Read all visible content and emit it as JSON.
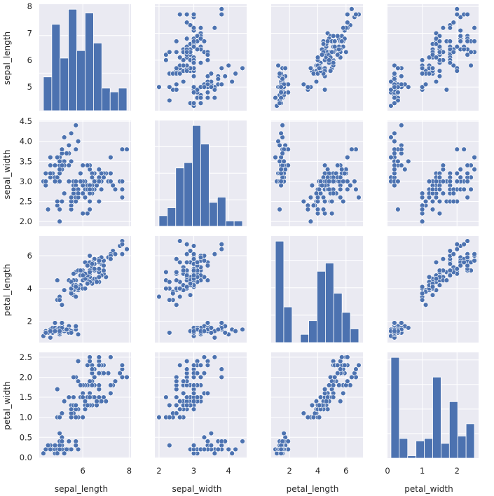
{
  "chart_data": {
    "type": "scatter",
    "variables": [
      "sepal_length",
      "sepal_width",
      "petal_length",
      "petal_width"
    ],
    "axes": {
      "sepal_length": {
        "range": [
          4.12,
          8.08
        ],
        "ticks": [
          6,
          8
        ],
        "tick_labels": [
          "6",
          "8"
        ],
        "row_ticks": [
          5,
          6,
          7,
          8
        ],
        "row_tick_labels": [
          "5",
          "6",
          "7",
          "8"
        ]
      },
      "sepal_width": {
        "range": [
          1.88,
          4.52
        ],
        "ticks": [
          2,
          3,
          4
        ],
        "tick_labels": [
          "2",
          "3",
          "4"
        ],
        "row_ticks": [
          2.0,
          2.5,
          3.0,
          3.5,
          4.0,
          4.5
        ],
        "row_tick_labels": [
          "2.0",
          "2.5",
          "3.0",
          "3.5",
          "4.0",
          "4.5"
        ]
      },
      "petal_length": {
        "range": [
          0.7,
          7.2
        ],
        "ticks": [
          2,
          4,
          6
        ],
        "tick_labels": [
          "2",
          "4",
          "6"
        ],
        "row_ticks": [
          2,
          4,
          6
        ],
        "row_tick_labels": [
          "2",
          "4",
          "6"
        ]
      },
      "petal_width": {
        "range": [
          -0.02,
          2.62
        ],
        "ticks": [
          0,
          1,
          2
        ],
        "tick_labels": [
          "0",
          "1",
          "2"
        ],
        "row_ticks": [
          0.0,
          0.5,
          1.0,
          1.5,
          2.0,
          2.5
        ],
        "row_tick_labels": [
          "0.0",
          "0.5",
          "1.0",
          "1.5",
          "2.0",
          "2.5"
        ]
      }
    },
    "histograms": {
      "sepal_length": {
        "edges": [
          4.3,
          4.66,
          5.02,
          5.38,
          5.74,
          6.1,
          6.46,
          6.82,
          7.18,
          7.54,
          7.9
        ],
        "counts": [
          9,
          23,
          14,
          27,
          16,
          26,
          18,
          6,
          5,
          6
        ]
      },
      "sepal_width": {
        "edges": [
          2.0,
          2.24,
          2.48,
          2.72,
          2.96,
          3.2,
          3.44,
          3.68,
          3.92,
          4.16,
          4.4
        ],
        "counts": [
          4,
          7,
          22,
          24,
          38,
          31,
          9,
          11,
          2,
          2
        ]
      },
      "petal_length": {
        "edges": [
          1.0,
          1.59,
          2.18,
          2.77,
          3.36,
          3.95,
          4.54,
          5.13,
          5.72,
          6.31,
          6.9
        ],
        "counts": [
          37,
          13,
          0,
          3,
          8,
          26,
          29,
          18,
          11,
          5
        ]
      },
      "petal_width": {
        "edges": [
          0.1,
          0.34,
          0.58,
          0.82,
          1.06,
          1.3,
          1.54,
          1.78,
          2.02,
          2.26,
          2.5
        ],
        "counts": [
          41,
          8,
          1,
          7,
          8,
          33,
          6,
          23,
          9,
          14
        ]
      }
    },
    "color": "#4c72b0",
    "background": "#eaeaf2",
    "grid": true,
    "records": [
      [
        5.1,
        3.5,
        1.4,
        0.2
      ],
      [
        4.9,
        3.0,
        1.4,
        0.2
      ],
      [
        4.7,
        3.2,
        1.3,
        0.2
      ],
      [
        4.6,
        3.1,
        1.5,
        0.2
      ],
      [
        5.0,
        3.6,
        1.4,
        0.2
      ],
      [
        5.4,
        3.9,
        1.7,
        0.4
      ],
      [
        4.6,
        3.4,
        1.4,
        0.3
      ],
      [
        5.0,
        3.4,
        1.5,
        0.2
      ],
      [
        4.4,
        2.9,
        1.4,
        0.2
      ],
      [
        4.9,
        3.1,
        1.5,
        0.1
      ],
      [
        5.4,
        3.7,
        1.5,
        0.2
      ],
      [
        4.8,
        3.4,
        1.6,
        0.2
      ],
      [
        4.8,
        3.0,
        1.4,
        0.1
      ],
      [
        4.3,
        3.0,
        1.1,
        0.1
      ],
      [
        5.8,
        4.0,
        1.2,
        0.2
      ],
      [
        5.7,
        4.4,
        1.5,
        0.4
      ],
      [
        5.4,
        3.9,
        1.3,
        0.4
      ],
      [
        5.1,
        3.5,
        1.4,
        0.3
      ],
      [
        5.7,
        3.8,
        1.7,
        0.3
      ],
      [
        5.1,
        3.8,
        1.5,
        0.3
      ],
      [
        5.4,
        3.4,
        1.7,
        0.2
      ],
      [
        5.1,
        3.7,
        1.5,
        0.4
      ],
      [
        4.6,
        3.6,
        1.0,
        0.2
      ],
      [
        5.1,
        3.3,
        1.7,
        0.5
      ],
      [
        4.8,
        3.4,
        1.9,
        0.2
      ],
      [
        5.0,
        3.0,
        1.6,
        0.2
      ],
      [
        5.0,
        3.4,
        1.6,
        0.4
      ],
      [
        5.2,
        3.5,
        1.5,
        0.2
      ],
      [
        5.2,
        3.4,
        1.4,
        0.2
      ],
      [
        4.7,
        3.2,
        1.6,
        0.2
      ],
      [
        4.8,
        3.1,
        1.6,
        0.2
      ],
      [
        5.4,
        3.4,
        1.5,
        0.4
      ],
      [
        5.2,
        4.1,
        1.5,
        0.1
      ],
      [
        5.5,
        4.2,
        1.4,
        0.2
      ],
      [
        4.9,
        3.1,
        1.5,
        0.2
      ],
      [
        5.0,
        3.2,
        1.2,
        0.2
      ],
      [
        5.5,
        3.5,
        1.3,
        0.2
      ],
      [
        4.9,
        3.6,
        1.4,
        0.1
      ],
      [
        4.4,
        3.0,
        1.3,
        0.2
      ],
      [
        5.1,
        3.4,
        1.5,
        0.2
      ],
      [
        5.0,
        3.5,
        1.3,
        0.3
      ],
      [
        4.5,
        2.3,
        1.3,
        0.3
      ],
      [
        4.4,
        3.2,
        1.3,
        0.2
      ],
      [
        5.0,
        3.5,
        1.6,
        0.6
      ],
      [
        5.1,
        3.8,
        1.9,
        0.4
      ],
      [
        4.8,
        3.0,
        1.4,
        0.3
      ],
      [
        5.1,
        3.8,
        1.6,
        0.2
      ],
      [
        4.6,
        3.2,
        1.4,
        0.2
      ],
      [
        5.3,
        3.7,
        1.5,
        0.2
      ],
      [
        5.0,
        3.3,
        1.4,
        0.2
      ],
      [
        7.0,
        3.2,
        4.7,
        1.4
      ],
      [
        6.4,
        3.2,
        4.5,
        1.5
      ],
      [
        6.9,
        3.1,
        4.9,
        1.5
      ],
      [
        5.5,
        2.3,
        4.0,
        1.3
      ],
      [
        6.5,
        2.8,
        4.6,
        1.5
      ],
      [
        5.7,
        2.8,
        4.5,
        1.3
      ],
      [
        6.3,
        3.3,
        4.7,
        1.6
      ],
      [
        4.9,
        2.4,
        3.3,
        1.0
      ],
      [
        6.6,
        2.9,
        4.6,
        1.3
      ],
      [
        5.2,
        2.7,
        3.9,
        1.4
      ],
      [
        5.0,
        2.0,
        3.5,
        1.0
      ],
      [
        5.9,
        3.0,
        4.2,
        1.5
      ],
      [
        6.0,
        2.2,
        4.0,
        1.0
      ],
      [
        6.1,
        2.9,
        4.7,
        1.4
      ],
      [
        5.6,
        2.9,
        3.6,
        1.3
      ],
      [
        6.7,
        3.1,
        4.4,
        1.4
      ],
      [
        5.6,
        3.0,
        4.5,
        1.5
      ],
      [
        5.8,
        2.7,
        4.1,
        1.0
      ],
      [
        6.2,
        2.2,
        4.5,
        1.5
      ],
      [
        5.6,
        2.5,
        3.9,
        1.1
      ],
      [
        5.9,
        3.2,
        4.8,
        1.8
      ],
      [
        6.1,
        2.8,
        4.0,
        1.3
      ],
      [
        6.3,
        2.5,
        4.9,
        1.5
      ],
      [
        6.1,
        2.8,
        4.7,
        1.2
      ],
      [
        6.4,
        2.9,
        4.3,
        1.3
      ],
      [
        6.6,
        3.0,
        4.4,
        1.4
      ],
      [
        6.8,
        2.8,
        4.8,
        1.4
      ],
      [
        6.7,
        3.0,
        5.0,
        1.7
      ],
      [
        6.0,
        2.9,
        4.5,
        1.5
      ],
      [
        5.7,
        2.6,
        3.5,
        1.0
      ],
      [
        5.5,
        2.4,
        3.8,
        1.1
      ],
      [
        5.5,
        2.4,
        3.7,
        1.0
      ],
      [
        5.8,
        2.7,
        3.9,
        1.2
      ],
      [
        6.0,
        2.7,
        5.1,
        1.6
      ],
      [
        5.4,
        3.0,
        4.5,
        1.5
      ],
      [
        6.0,
        3.4,
        4.5,
        1.6
      ],
      [
        6.7,
        3.1,
        4.7,
        1.5
      ],
      [
        6.3,
        2.3,
        4.4,
        1.3
      ],
      [
        5.6,
        3.0,
        4.1,
        1.3
      ],
      [
        5.5,
        2.5,
        4.0,
        1.3
      ],
      [
        5.5,
        2.6,
        4.4,
        1.2
      ],
      [
        6.1,
        3.0,
        4.6,
        1.4
      ],
      [
        5.8,
        2.6,
        4.0,
        1.2
      ],
      [
        5.0,
        2.3,
        3.3,
        1.0
      ],
      [
        5.6,
        2.7,
        4.2,
        1.3
      ],
      [
        5.7,
        3.0,
        4.2,
        1.2
      ],
      [
        5.7,
        2.9,
        4.2,
        1.3
      ],
      [
        6.2,
        2.9,
        4.3,
        1.3
      ],
      [
        5.1,
        2.5,
        3.0,
        1.1
      ],
      [
        5.7,
        2.8,
        4.1,
        1.3
      ],
      [
        6.3,
        3.3,
        6.0,
        2.5
      ],
      [
        5.8,
        2.7,
        5.1,
        1.9
      ],
      [
        7.1,
        3.0,
        5.9,
        2.1
      ],
      [
        6.3,
        2.9,
        5.6,
        1.8
      ],
      [
        6.5,
        3.0,
        5.8,
        2.2
      ],
      [
        7.6,
        3.0,
        6.6,
        2.1
      ],
      [
        4.9,
        2.5,
        4.5,
        1.7
      ],
      [
        7.3,
        2.9,
        6.3,
        1.8
      ],
      [
        6.7,
        2.5,
        5.8,
        1.8
      ],
      [
        7.2,
        3.6,
        6.1,
        2.5
      ],
      [
        6.5,
        3.2,
        5.1,
        2.0
      ],
      [
        6.4,
        2.7,
        5.3,
        1.9
      ],
      [
        6.8,
        3.0,
        5.5,
        2.1
      ],
      [
        5.7,
        2.5,
        5.0,
        2.0
      ],
      [
        5.8,
        2.8,
        5.1,
        2.4
      ],
      [
        6.4,
        3.2,
        5.3,
        2.3
      ],
      [
        6.5,
        3.0,
        5.5,
        1.8
      ],
      [
        7.7,
        3.8,
        6.7,
        2.2
      ],
      [
        7.7,
        2.6,
        6.9,
        2.3
      ],
      [
        6.0,
        2.2,
        5.0,
        1.5
      ],
      [
        6.9,
        3.2,
        5.7,
        2.3
      ],
      [
        5.6,
        2.8,
        4.9,
        2.0
      ],
      [
        7.7,
        2.8,
        6.7,
        2.0
      ],
      [
        6.3,
        2.7,
        4.9,
        1.8
      ],
      [
        6.7,
        3.3,
        5.7,
        2.1
      ],
      [
        7.2,
        3.2,
        6.0,
        1.8
      ],
      [
        6.2,
        2.8,
        4.8,
        1.8
      ],
      [
        6.1,
        3.0,
        4.9,
        1.8
      ],
      [
        6.4,
        2.8,
        5.6,
        2.1
      ],
      [
        7.2,
        3.0,
        5.8,
        1.6
      ],
      [
        7.4,
        2.8,
        6.1,
        1.9
      ],
      [
        7.9,
        3.8,
        6.4,
        2.0
      ],
      [
        6.4,
        2.8,
        5.6,
        2.2
      ],
      [
        6.3,
        2.8,
        5.1,
        1.5
      ],
      [
        6.1,
        2.6,
        5.6,
        1.4
      ],
      [
        7.7,
        3.0,
        6.1,
        2.3
      ],
      [
        6.3,
        3.4,
        5.6,
        2.4
      ],
      [
        6.4,
        3.1,
        5.5,
        1.8
      ],
      [
        6.0,
        3.0,
        4.8,
        1.8
      ],
      [
        6.9,
        3.1,
        5.4,
        2.1
      ],
      [
        6.7,
        3.1,
        5.6,
        2.4
      ],
      [
        6.9,
        3.1,
        5.1,
        2.3
      ],
      [
        5.8,
        2.7,
        5.1,
        1.9
      ],
      [
        6.8,
        3.2,
        5.9,
        2.3
      ],
      [
        6.7,
        3.3,
        5.7,
        2.5
      ],
      [
        6.7,
        3.0,
        5.2,
        2.3
      ],
      [
        6.3,
        2.5,
        5.0,
        1.9
      ],
      [
        6.5,
        3.0,
        5.2,
        2.0
      ],
      [
        6.2,
        3.4,
        5.4,
        2.3
      ],
      [
        5.9,
        3.0,
        5.1,
        1.8
      ]
    ]
  }
}
